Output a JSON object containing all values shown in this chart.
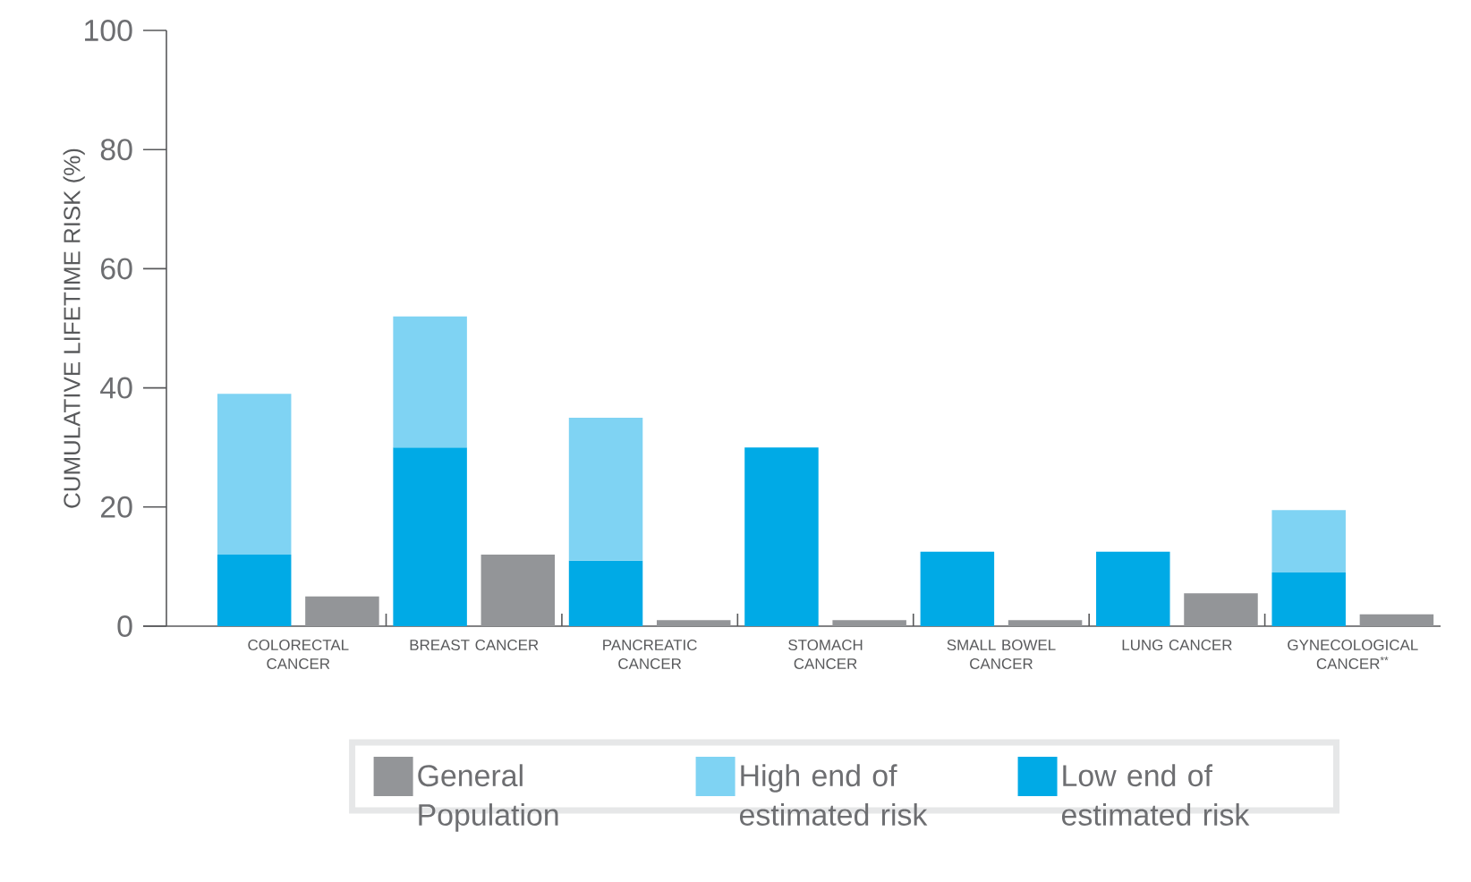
{
  "chart_data": {
    "type": "bar",
    "ylabel": "CUMULATIVE LIFETIME RISK (%)",
    "categories": [
      "COLORECTAL CANCER",
      null,
      "BREAST CANCER",
      null,
      "PANCREATIC CANCER",
      null,
      "STOMACH CANCER",
      null,
      "SMALL BOWEL CANCER",
      null,
      "LUNG CANCER",
      null,
      "GYNECOLOGICAL CANCER$^{**}$",
      null
    ],
    "series": [
      {
        "name": "Low end of estimated risk",
        "color": "#00aae6",
        "values": [
          12,
          null,
          30,
          null,
          11,
          null,
          30,
          null,
          12.5,
          null,
          12.5,
          null,
          9,
          null
        ]
      },
      {
        "name": "High end of estimated risk",
        "color": "#7fd3f3",
        "values": [
          27,
          null,
          22,
          null,
          24,
          null,
          null,
          null,
          null,
          null,
          null,
          null,
          10.5,
          null
        ]
      },
      {
        "name": "General Population",
        "color": "#939598",
        "values": [
          null,
          5,
          null,
          12,
          null,
          1,
          null,
          1,
          null,
          1,
          null,
          5.5,
          null,
          2
        ]
      }
    ],
    "stacked": true,
    "ylim": [
      0,
      100
    ],
    "yticks": [
      0,
      20,
      40,
      60,
      80,
      100
    ],
    "grid": false,
    "legend": "bottom"
  }
}
